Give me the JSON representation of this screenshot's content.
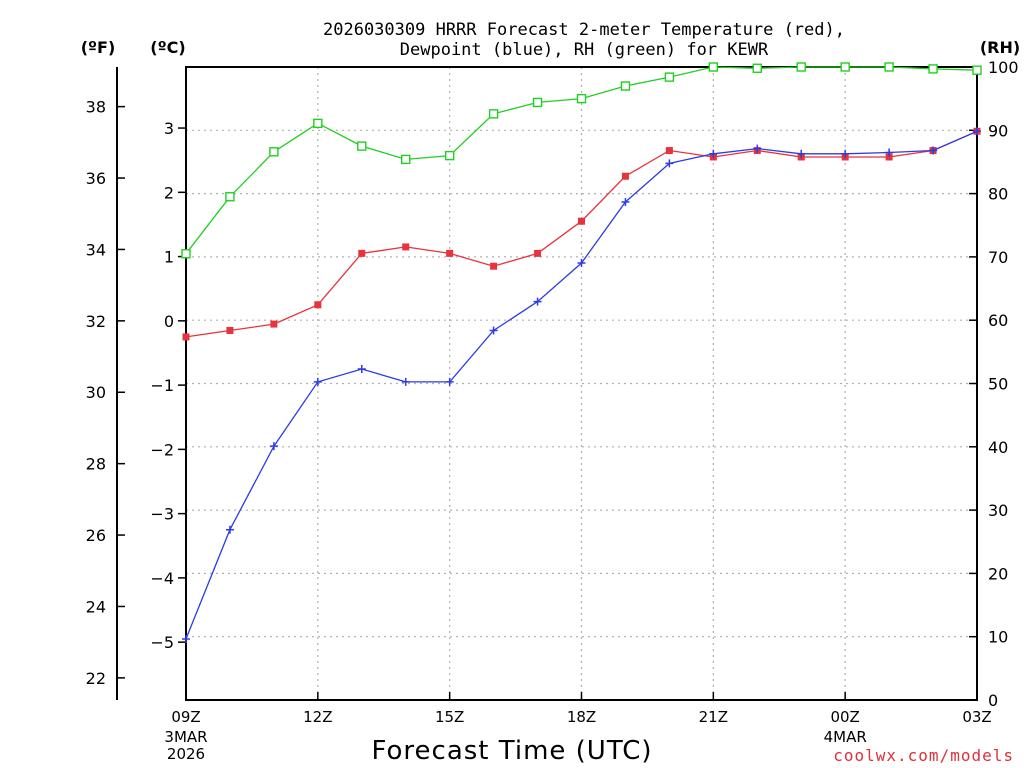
{
  "chart_data": {
    "type": "line",
    "title_line1": "2026030309 HRRR Forecast 2-meter Temperature (red),",
    "title_line2": "Dewpoint (blue), RH (green) for KEWR",
    "units": {
      "fahrenheit": "(ºF)",
      "celsius": "(ºC)",
      "rh": "(RH)"
    },
    "xlabel": "Forecast Time (UTC)",
    "credit": "coolwx.com/models",
    "x_hours": [
      0,
      1,
      2,
      3,
      4,
      5,
      6,
      7,
      8,
      9,
      10,
      11,
      12,
      13,
      14,
      15,
      16,
      17,
      18
    ],
    "xlim": [
      0,
      18
    ],
    "x_ticks": [
      {
        "hour": 0,
        "label": "09Z",
        "sub": [
          "3MAR",
          "2026"
        ]
      },
      {
        "hour": 3,
        "label": "12Z",
        "sub": []
      },
      {
        "hour": 6,
        "label": "15Z",
        "sub": []
      },
      {
        "hour": 9,
        "label": "18Z",
        "sub": []
      },
      {
        "hour": 12,
        "label": "21Z",
        "sub": []
      },
      {
        "hour": 15,
        "label": "00Z",
        "sub": [
          "4MAR"
        ]
      },
      {
        "hour": 18,
        "label": "03Z",
        "sub": []
      }
    ],
    "celsius_ticks": [
      3,
      2,
      1,
      0,
      -1,
      -2,
      -3,
      -4,
      -5
    ],
    "celsius_labels": [
      "3",
      "2",
      "1",
      "0",
      "−1",
      "−2",
      "−3",
      "−4",
      "−5"
    ],
    "fahrenheit_ticks": [
      38,
      36,
      34,
      32,
      30,
      28,
      26,
      24,
      22
    ],
    "fahrenheit_labels": [
      "38",
      "36",
      "34",
      "32",
      "30",
      "28",
      "26",
      "24",
      "22"
    ],
    "rh_ticks": [
      100,
      90,
      80,
      70,
      60,
      50,
      40,
      30,
      20,
      10,
      0
    ],
    "rh_labels": [
      "100",
      "90",
      "80",
      "70",
      "60",
      "50",
      "40",
      "30",
      "20",
      "10",
      "0"
    ],
    "ylim_celsius": [
      -5.9,
      3.95
    ],
    "ylim_rh": [
      0,
      100
    ],
    "series": [
      {
        "name": "Temperature",
        "unit": "C",
        "color": "#e8323c",
        "marker": "filled-square",
        "values": [
          -0.25,
          -0.15,
          -0.05,
          0.25,
          1.05,
          1.15,
          1.05,
          0.85,
          1.05,
          1.55,
          2.25,
          2.65,
          2.55,
          2.65,
          2.55,
          2.55,
          2.55,
          2.65,
          2.95
        ]
      },
      {
        "name": "Dewpoint",
        "unit": "C",
        "color": "#2c3ce6",
        "marker": "plus",
        "values": [
          -4.95,
          -3.25,
          -1.95,
          -0.95,
          -0.75,
          -0.95,
          -0.95,
          -0.15,
          0.3,
          0.9,
          1.85,
          2.45,
          2.6,
          2.68,
          2.6,
          2.6,
          2.62,
          2.65,
          2.95
        ]
      },
      {
        "name": "RH",
        "unit": "%",
        "color": "#20d020",
        "marker": "open-square",
        "values": [
          70.5,
          79.5,
          86.6,
          91.1,
          87.5,
          85.4,
          86.0,
          92.6,
          94.4,
          95.0,
          97.0,
          98.4,
          100,
          99.8,
          100,
          100,
          100,
          99.7,
          99.5
        ]
      }
    ]
  }
}
